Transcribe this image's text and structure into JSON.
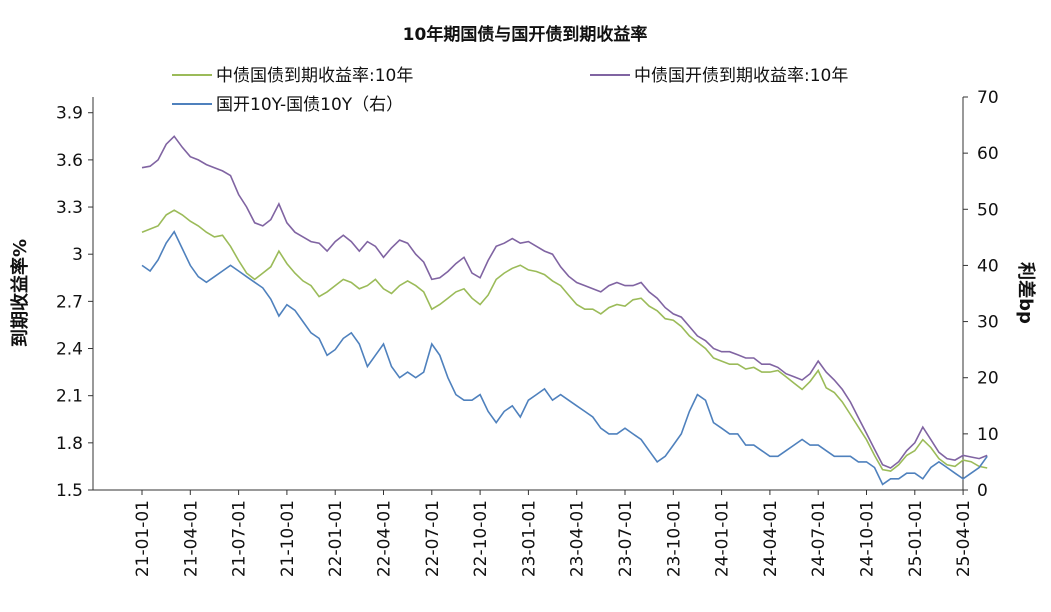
{
  "chart_data": {
    "type": "line",
    "title": "10年期国债与国开债到期收益率",
    "ylabel_left": "到期收益率%",
    "ylabel_right": "利差bp",
    "ylim_left": [
      1.5,
      4.0
    ],
    "yticks_left": [
      "3.9",
      "3.6",
      "3.3",
      "3",
      "2.7",
      "2.4",
      "2.1",
      "1.8",
      "1.5"
    ],
    "ylim_right": [
      0,
      70
    ],
    "yticks_right": [
      "70",
      "60",
      "50",
      "40",
      "30",
      "20",
      "10",
      "0"
    ],
    "xticks": [
      "21-01-01",
      "21-04-01",
      "21-07-01",
      "21-10-01",
      "22-01-01",
      "22-04-01",
      "22-07-01",
      "22-10-01",
      "23-01-01",
      "23-04-01",
      "23-07-01",
      "23-10-01",
      "24-01-01",
      "24-04-01",
      "24-07-01",
      "24-10-01",
      "25-01-01",
      "25-04-01"
    ],
    "grid": false,
    "legend_position": "top",
    "series": [
      {
        "name": "中债国债到期收益率:10年",
        "axis": "left",
        "color": "#9bbb59",
        "points": [
          [
            0,
            3.14
          ],
          [
            1,
            3.18
          ],
          [
            1.5,
            3.25
          ],
          [
            2,
            3.28
          ],
          [
            2.5,
            3.25
          ],
          [
            3,
            3.21
          ],
          [
            3.5,
            3.18
          ],
          [
            4,
            3.14
          ],
          [
            4.5,
            3.11
          ],
          [
            5,
            3.12
          ],
          [
            5.5,
            3.05
          ],
          [
            6,
            2.96
          ],
          [
            6.5,
            2.88
          ],
          [
            7,
            2.84
          ],
          [
            7.5,
            2.88
          ],
          [
            8,
            2.92
          ],
          [
            8.5,
            3.02
          ],
          [
            9,
            2.94
          ],
          [
            9.5,
            2.88
          ],
          [
            10,
            2.83
          ],
          [
            10.5,
            2.8
          ],
          [
            11,
            2.73
          ],
          [
            11.5,
            2.76
          ],
          [
            12,
            2.8
          ],
          [
            12.5,
            2.84
          ],
          [
            13,
            2.82
          ],
          [
            13.5,
            2.78
          ],
          [
            14,
            2.8
          ],
          [
            14.5,
            2.84
          ],
          [
            15,
            2.78
          ],
          [
            15.5,
            2.75
          ],
          [
            16,
            2.8
          ],
          [
            16.5,
            2.83
          ],
          [
            17,
            2.8
          ],
          [
            17.5,
            2.76
          ],
          [
            18,
            2.65
          ],
          [
            18.5,
            2.68
          ],
          [
            19,
            2.72
          ],
          [
            19.5,
            2.76
          ],
          [
            20,
            2.78
          ],
          [
            20.5,
            2.72
          ],
          [
            21,
            2.68
          ],
          [
            21.5,
            2.74
          ],
          [
            22,
            2.84
          ],
          [
            22.5,
            2.88
          ],
          [
            23,
            2.91
          ],
          [
            23.5,
            2.93
          ],
          [
            24,
            2.9
          ],
          [
            24.5,
            2.89
          ],
          [
            25,
            2.87
          ],
          [
            25.5,
            2.83
          ],
          [
            26,
            2.8
          ],
          [
            26.5,
            2.74
          ],
          [
            27,
            2.68
          ],
          [
            27.5,
            2.65
          ],
          [
            28,
            2.65
          ],
          [
            28.5,
            2.62
          ],
          [
            29,
            2.66
          ],
          [
            29.5,
            2.68
          ],
          [
            30,
            2.67
          ],
          [
            30.5,
            2.71
          ],
          [
            31,
            2.72
          ],
          [
            31.5,
            2.67
          ],
          [
            32,
            2.64
          ],
          [
            32.5,
            2.59
          ],
          [
            33,
            2.58
          ],
          [
            33.5,
            2.54
          ],
          [
            34,
            2.48
          ],
          [
            34.5,
            2.44
          ],
          [
            35,
            2.4
          ],
          [
            35.5,
            2.34
          ],
          [
            36,
            2.32
          ],
          [
            36.5,
            2.3
          ],
          [
            37,
            2.3
          ],
          [
            37.5,
            2.27
          ],
          [
            38,
            2.28
          ],
          [
            38.5,
            2.25
          ],
          [
            39,
            2.25
          ],
          [
            39.5,
            2.26
          ],
          [
            40,
            2.22
          ],
          [
            40.5,
            2.18
          ],
          [
            41,
            2.14
          ],
          [
            41.5,
            2.19
          ],
          [
            42,
            2.26
          ],
          [
            42.5,
            2.15
          ],
          [
            43,
            2.12
          ],
          [
            43.5,
            2.06
          ],
          [
            44,
            1.98
          ],
          [
            44.5,
            1.9
          ],
          [
            45,
            1.82
          ],
          [
            45.5,
            1.72
          ],
          [
            46,
            1.63
          ],
          [
            46.5,
            1.62
          ],
          [
            47,
            1.66
          ],
          [
            47.5,
            1.72
          ],
          [
            48,
            1.75
          ],
          [
            48.5,
            1.82
          ],
          [
            49,
            1.77
          ],
          [
            49.5,
            1.7
          ],
          [
            50,
            1.66
          ],
          [
            50.5,
            1.65
          ],
          [
            51,
            1.69
          ],
          [
            51.5,
            1.68
          ],
          [
            52,
            1.65
          ],
          [
            52.5,
            1.64
          ]
        ]
      },
      {
        "name": "中债国开债到期收益率:10年",
        "axis": "left",
        "color": "#8064a2",
        "points": [
          [
            0,
            3.55
          ],
          [
            0.5,
            3.56
          ],
          [
            1,
            3.6
          ],
          [
            1.5,
            3.7
          ],
          [
            2,
            3.75
          ],
          [
            2.5,
            3.68
          ],
          [
            3,
            3.62
          ],
          [
            3.5,
            3.6
          ],
          [
            4,
            3.57
          ],
          [
            4.5,
            3.55
          ],
          [
            5,
            3.53
          ],
          [
            5.5,
            3.5
          ],
          [
            6,
            3.38
          ],
          [
            6.5,
            3.3
          ],
          [
            7,
            3.2
          ],
          [
            7.5,
            3.18
          ],
          [
            8,
            3.22
          ],
          [
            8.5,
            3.32
          ],
          [
            9,
            3.2
          ],
          [
            9.5,
            3.14
          ],
          [
            10,
            3.11
          ],
          [
            10.5,
            3.08
          ],
          [
            11,
            3.07
          ],
          [
            11.5,
            3.02
          ],
          [
            12,
            3.08
          ],
          [
            12.5,
            3.12
          ],
          [
            13,
            3.08
          ],
          [
            13.5,
            3.02
          ],
          [
            14,
            3.08
          ],
          [
            14.5,
            3.05
          ],
          [
            15,
            2.98
          ],
          [
            15.5,
            3.04
          ],
          [
            16,
            3.09
          ],
          [
            16.5,
            3.07
          ],
          [
            17,
            3.0
          ],
          [
            17.5,
            2.95
          ],
          [
            18,
            2.84
          ],
          [
            18.5,
            2.85
          ],
          [
            19,
            2.89
          ],
          [
            19.5,
            2.94
          ],
          [
            20,
            2.98
          ],
          [
            20.5,
            2.88
          ],
          [
            21,
            2.85
          ],
          [
            21.5,
            2.96
          ],
          [
            22,
            3.05
          ],
          [
            22.5,
            3.07
          ],
          [
            23,
            3.1
          ],
          [
            23.5,
            3.07
          ],
          [
            24,
            3.08
          ],
          [
            24.5,
            3.05
          ],
          [
            25,
            3.02
          ],
          [
            25.5,
            3.0
          ],
          [
            26,
            2.92
          ],
          [
            26.5,
            2.86
          ],
          [
            27,
            2.82
          ],
          [
            27.5,
            2.8
          ],
          [
            28,
            2.78
          ],
          [
            28.5,
            2.76
          ],
          [
            29,
            2.8
          ],
          [
            29.5,
            2.82
          ],
          [
            30,
            2.8
          ],
          [
            30.5,
            2.8
          ],
          [
            31,
            2.82
          ],
          [
            31.5,
            2.76
          ],
          [
            32,
            2.72
          ],
          [
            32.5,
            2.66
          ],
          [
            33,
            2.62
          ],
          [
            33.5,
            2.6
          ],
          [
            34,
            2.54
          ],
          [
            34.5,
            2.48
          ],
          [
            35,
            2.45
          ],
          [
            35.5,
            2.4
          ],
          [
            36,
            2.38
          ],
          [
            36.5,
            2.38
          ],
          [
            37,
            2.36
          ],
          [
            37.5,
            2.34
          ],
          [
            38,
            2.34
          ],
          [
            38.5,
            2.3
          ],
          [
            39,
            2.3
          ],
          [
            39.5,
            2.28
          ],
          [
            40,
            2.24
          ],
          [
            40.5,
            2.22
          ],
          [
            41,
            2.2
          ],
          [
            41.5,
            2.24
          ],
          [
            42,
            2.32
          ],
          [
            42.5,
            2.25
          ],
          [
            43,
            2.2
          ],
          [
            43.5,
            2.14
          ],
          [
            44,
            2.06
          ],
          [
            44.5,
            1.96
          ],
          [
            45,
            1.86
          ],
          [
            45.5,
            1.76
          ],
          [
            46,
            1.66
          ],
          [
            46.5,
            1.64
          ],
          [
            47,
            1.68
          ],
          [
            47.5,
            1.75
          ],
          [
            48,
            1.8
          ],
          [
            48.5,
            1.9
          ],
          [
            49,
            1.82
          ],
          [
            49.5,
            1.74
          ],
          [
            50,
            1.7
          ],
          [
            50.5,
            1.69
          ],
          [
            51,
            1.72
          ],
          [
            51.5,
            1.71
          ],
          [
            52,
            1.7
          ],
          [
            52.5,
            1.72
          ]
        ]
      },
      {
        "name": "国开10Y-国债10Y（右）",
        "axis": "right",
        "color": "#4f81bd",
        "points": [
          [
            0,
            40
          ],
          [
            0.5,
            39
          ],
          [
            1,
            41
          ],
          [
            1.5,
            44
          ],
          [
            2,
            46
          ],
          [
            2.5,
            43
          ],
          [
            3,
            40
          ],
          [
            3.5,
            38
          ],
          [
            4,
            37
          ],
          [
            4.5,
            38
          ],
          [
            5,
            39
          ],
          [
            5.5,
            40
          ],
          [
            6,
            39
          ],
          [
            6.5,
            38
          ],
          [
            7,
            37
          ],
          [
            7.5,
            36
          ],
          [
            8,
            34
          ],
          [
            8.5,
            31
          ],
          [
            9,
            33
          ],
          [
            9.5,
            32
          ],
          [
            10,
            30
          ],
          [
            10.5,
            28
          ],
          [
            11,
            27
          ],
          [
            11.5,
            24
          ],
          [
            12,
            25
          ],
          [
            12.5,
            27
          ],
          [
            13,
            28
          ],
          [
            13.5,
            26
          ],
          [
            14,
            22
          ],
          [
            14.5,
            24
          ],
          [
            15,
            26
          ],
          [
            15.5,
            22
          ],
          [
            16,
            20
          ],
          [
            16.5,
            21
          ],
          [
            17,
            20
          ],
          [
            17.5,
            21
          ],
          [
            18,
            26
          ],
          [
            18.5,
            24
          ],
          [
            19,
            20
          ],
          [
            19.5,
            17
          ],
          [
            20,
            16
          ],
          [
            20.5,
            16
          ],
          [
            21,
            17
          ],
          [
            21.5,
            14
          ],
          [
            22,
            12
          ],
          [
            22.5,
            14
          ],
          [
            23,
            15
          ],
          [
            23.5,
            13
          ],
          [
            24,
            16
          ],
          [
            24.5,
            17
          ],
          [
            25,
            18
          ],
          [
            25.5,
            16
          ],
          [
            26,
            17
          ],
          [
            26.5,
            16
          ],
          [
            27,
            15
          ],
          [
            27.5,
            14
          ],
          [
            28,
            13
          ],
          [
            28.5,
            11
          ],
          [
            29,
            10
          ],
          [
            29.5,
            10
          ],
          [
            30,
            11
          ],
          [
            30.5,
            10
          ],
          [
            31,
            9
          ],
          [
            31.5,
            7
          ],
          [
            32,
            5
          ],
          [
            32.5,
            6
          ],
          [
            33,
            8
          ],
          [
            33.5,
            10
          ],
          [
            34,
            14
          ],
          [
            34.5,
            17
          ],
          [
            35,
            16
          ],
          [
            35.5,
            12
          ],
          [
            36,
            11
          ],
          [
            36.5,
            10
          ],
          [
            37,
            10
          ],
          [
            37.5,
            8
          ],
          [
            38,
            8
          ],
          [
            38.5,
            7
          ],
          [
            39,
            6
          ],
          [
            39.5,
            6
          ],
          [
            40,
            7
          ],
          [
            40.5,
            8
          ],
          [
            41,
            9
          ],
          [
            41.5,
            8
          ],
          [
            42,
            8
          ],
          [
            42.5,
            7
          ],
          [
            43,
            6
          ],
          [
            43.5,
            6
          ],
          [
            44,
            6
          ],
          [
            44.5,
            5
          ],
          [
            45,
            5
          ],
          [
            45.5,
            4
          ],
          [
            46,
            1
          ],
          [
            46.5,
            2
          ],
          [
            47,
            2
          ],
          [
            47.5,
            3
          ],
          [
            48,
            3
          ],
          [
            48.5,
            2
          ],
          [
            49,
            4
          ],
          [
            49.5,
            5
          ],
          [
            50,
            4
          ],
          [
            50.5,
            3
          ],
          [
            51,
            2
          ],
          [
            51.5,
            3
          ],
          [
            52,
            4
          ],
          [
            52.5,
            6
          ]
        ]
      }
    ]
  }
}
